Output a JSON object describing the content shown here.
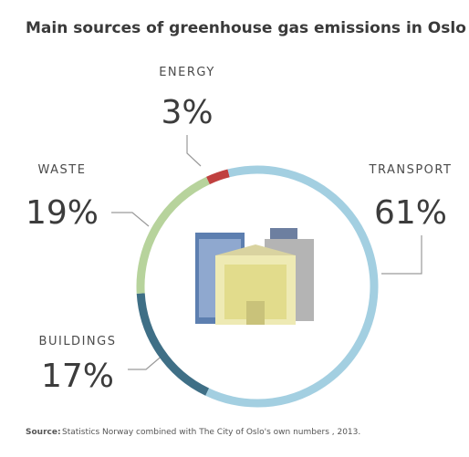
{
  "chart_data": {
    "type": "donut",
    "title": "Main sources of greenhouse gas emissions in Oslo",
    "categories": [
      "ENERGY",
      "TRANSPORT",
      "BUILDINGS",
      "WASTE"
    ],
    "values": [
      3,
      61,
      17,
      19
    ],
    "value_labels": [
      "3%",
      "61%",
      "17%",
      "19%"
    ],
    "colors": [
      "#c0403f",
      "#a3cfe1",
      "#3f6f86",
      "#b7d39c"
    ],
    "source_label": "Source:",
    "source": "Statistics Norway combined with The City of Oslo's own numbers , 2013."
  }
}
